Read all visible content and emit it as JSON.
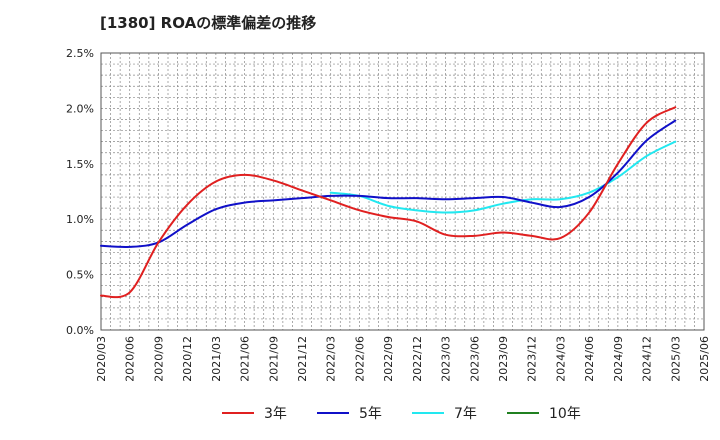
{
  "chart_data": {
    "type": "line",
    "title": "[1380]  ROAの標準偏差の推移",
    "xlabel": "",
    "ylabel": "",
    "categories": [
      "2020/03",
      "2020/06",
      "2020/09",
      "2020/12",
      "2021/03",
      "2021/06",
      "2021/09",
      "2021/12",
      "2022/03",
      "2022/06",
      "2022/09",
      "2022/12",
      "2023/03",
      "2023/06",
      "2023/09",
      "2023/12",
      "2024/03",
      "2024/06",
      "2024/09",
      "2024/12",
      "2025/03",
      "2025/06"
    ],
    "y_ticks": [
      "0.0%",
      "0.5%",
      "1.0%",
      "1.5%",
      "2.0%",
      "2.5%"
    ],
    "ylim": [
      0,
      2.5
    ],
    "y_unit": "%",
    "grid": true,
    "legend_position": "bottom",
    "series": [
      {
        "name": "3年",
        "color": "#e02020",
        "values": [
          0.31,
          0.34,
          0.79,
          1.13,
          1.34,
          1.4,
          1.35,
          1.26,
          1.17,
          1.08,
          1.02,
          0.98,
          0.86,
          0.85,
          0.88,
          0.85,
          0.83,
          1.06,
          1.5,
          1.87,
          2.01,
          null
        ]
      },
      {
        "name": "5年",
        "color": "#1010c8",
        "values": [
          0.76,
          0.75,
          0.79,
          0.95,
          1.09,
          1.15,
          1.17,
          1.19,
          1.21,
          1.21,
          1.19,
          1.19,
          1.18,
          1.19,
          1.2,
          1.15,
          1.11,
          1.2,
          1.42,
          1.71,
          1.89,
          null
        ]
      },
      {
        "name": "7年",
        "color": "#22e8f0",
        "values": [
          null,
          null,
          null,
          null,
          null,
          null,
          null,
          null,
          1.24,
          1.21,
          1.12,
          1.08,
          1.06,
          1.08,
          1.14,
          1.18,
          1.18,
          1.24,
          1.38,
          1.57,
          1.7,
          null
        ]
      },
      {
        "name": "10年",
        "color": "#208020",
        "values": [
          null,
          null,
          null,
          null,
          null,
          null,
          null,
          null,
          null,
          null,
          null,
          null,
          null,
          null,
          null,
          null,
          null,
          null,
          null,
          null,
          null,
          null
        ]
      }
    ]
  }
}
